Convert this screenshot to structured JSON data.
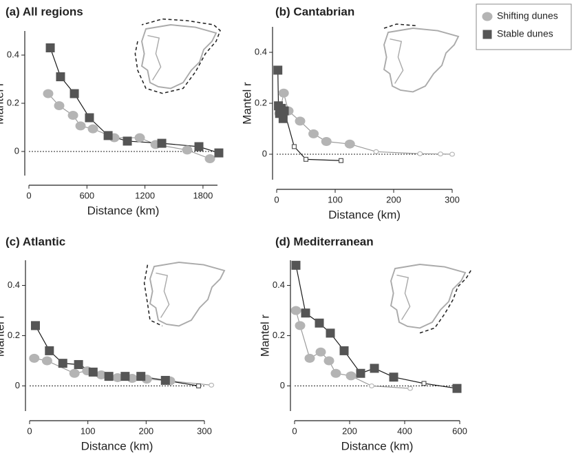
{
  "legend": [
    {
      "name": "Shifting dunes",
      "color": "#b4b4b4",
      "marker": "circle"
    },
    {
      "name": "Stable dunes",
      "color": "#555555",
      "marker": "square"
    }
  ],
  "chart_data": [
    {
      "type": "line",
      "title": "(a) All regions",
      "xlabel": "Distance (km)",
      "ylabel": "Mantel r",
      "xlim": [
        0,
        1950
      ],
      "ylim": [
        -0.1,
        0.5
      ],
      "xticks": [
        0,
        600,
        1200,
        1800
      ],
      "yticks": [
        0,
        0.2,
        0.4
      ],
      "series": [
        {
          "x": [
            199,
            313,
            456,
            534,
            662,
            883,
            1146,
            1310,
            1637,
            1872
          ],
          "values": [
            0.24,
            0.19,
            0.15,
            0.106,
            0.094,
            0.057,
            0.057,
            0.029,
            0.006,
            -0.03
          ],
          "significant": [
            true,
            true,
            true,
            true,
            true,
            true,
            true,
            true,
            true,
            true
          ]
        },
        {
          "x": [
            221,
            327,
            470,
            626,
            819,
            1018,
            1374,
            1758,
            1964
          ],
          "values": [
            0.43,
            0.31,
            0.24,
            0.14,
            0.066,
            0.043,
            0.034,
            0.02,
            -0.006
          ],
          "significant": [
            true,
            true,
            true,
            true,
            true,
            true,
            true,
            true,
            true
          ]
        }
      ]
    },
    {
      "type": "line",
      "title": "(b) Cantabrian",
      "xlabel": "Distance (km)",
      "ylabel": "Mantel r",
      "xlim": [
        0,
        300
      ],
      "ylim": [
        -0.1,
        0.5
      ],
      "xticks": [
        0,
        100,
        200,
        300
      ],
      "yticks": [
        0,
        0.2,
        0.4
      ],
      "series": [
        {
          "x": [
            5,
            12,
            20,
            40,
            63,
            85,
            125,
            170,
            245,
            280,
            300
          ],
          "values": [
            0.16,
            0.24,
            0.17,
            0.13,
            0.08,
            0.05,
            0.04,
            0.01,
            0.002,
            0.001,
            0
          ],
          "significant": [
            true,
            true,
            true,
            true,
            true,
            true,
            true,
            false,
            false,
            false,
            false
          ]
        },
        {
          "x": [
            2,
            3,
            5,
            8,
            11,
            13,
            30,
            50,
            110
          ],
          "values": [
            0.33,
            0.19,
            0.16,
            0.18,
            0.14,
            0.17,
            0.03,
            -0.02,
            -0.025
          ],
          "significant": [
            true,
            true,
            true,
            true,
            true,
            true,
            false,
            false,
            false
          ]
        }
      ]
    },
    {
      "type": "line",
      "title": "(c) Atlantic",
      "xlabel": "Distance (km)",
      "ylabel": "Mantel r",
      "xlim": [
        0,
        300
      ],
      "ylim": [
        -0.1,
        0.5
      ],
      "xticks": [
        0,
        100,
        200,
        300
      ],
      "yticks": [
        0,
        0.2,
        0.4
      ],
      "series": [
        {
          "x": [
            8,
            30,
            77,
            99,
            123,
            151,
            176,
            201,
            241,
            312
          ],
          "values": [
            0.11,
            0.1,
            0.05,
            0.06,
            0.044,
            0.033,
            0.03,
            0.027,
            0.02,
            0.003
          ],
          "significant": [
            true,
            true,
            true,
            true,
            true,
            true,
            true,
            true,
            true,
            false
          ]
        },
        {
          "x": [
            10,
            34,
            57,
            84,
            109,
            136,
            164,
            191,
            233,
            290
          ],
          "values": [
            0.24,
            0.14,
            0.09,
            0.085,
            0.055,
            0.038,
            0.038,
            0.038,
            0.022,
            0
          ],
          "significant": [
            true,
            true,
            true,
            true,
            true,
            true,
            true,
            true,
            true,
            false
          ]
        }
      ]
    },
    {
      "type": "line",
      "title": "(d) Mediterranean",
      "xlabel": "Distance (km)",
      "ylabel": "Mantel r",
      "xlim": [
        0,
        600
      ],
      "ylim": [
        -0.1,
        0.5
      ],
      "xticks": [
        0,
        200,
        400,
        600
      ],
      "yticks": [
        0,
        0.2,
        0.4
      ],
      "series": [
        {
          "x": [
            5,
            20,
            55,
            95,
            125,
            150,
            205,
            280,
            420
          ],
          "values": [
            0.3,
            0.24,
            0.11,
            0.135,
            0.1,
            0.05,
            0.04,
            0.0,
            -0.01
          ],
          "significant": [
            true,
            true,
            true,
            true,
            true,
            true,
            true,
            false,
            false
          ]
        },
        {
          "x": [
            5,
            40,
            90,
            130,
            180,
            240,
            290,
            360,
            470,
            590
          ],
          "values": [
            0.48,
            0.29,
            0.25,
            0.21,
            0.14,
            0.05,
            0.07,
            0.035,
            0.01,
            -0.01
          ],
          "significant": [
            true,
            true,
            true,
            true,
            true,
            true,
            true,
            true,
            false,
            true
          ]
        }
      ]
    }
  ]
}
